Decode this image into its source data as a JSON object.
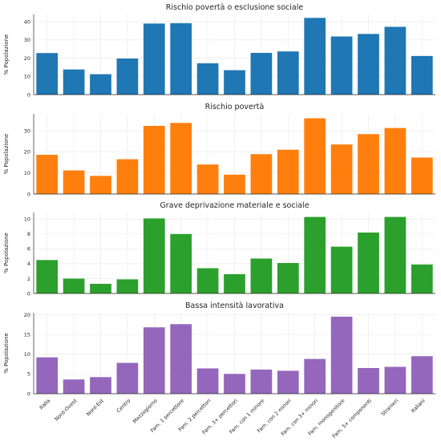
{
  "chart_data": {
    "type": "bar",
    "layout": "4 stacked subplots sharing the x axis",
    "categories": [
      "Italia",
      "Nord-Ovest",
      "Nord-Est",
      "Centro",
      "Mezzogiorno",
      "Fam. 1 percettore",
      "Fam. 2 percettori",
      "Fam. 3+ percettori",
      "Fam. con 1 minore",
      "Fam. con 2 minori",
      "Fam. con 3+ minori",
      "Fam. monogenitore",
      "Fam. 5+ componenti",
      "Stranieri",
      "Italiani"
    ],
    "grid": true,
    "panels": [
      {
        "title": "Rischio povertà o esclusione sociale",
        "ylabel": "% Popolazione",
        "color": "#1f77b4",
        "ylim": [
          0,
          44
        ],
        "yticks": [
          0,
          10,
          20,
          30,
          40
        ],
        "values": [
          22.8,
          13.8,
          11.2,
          19.8,
          39.0,
          39.2,
          17.2,
          13.4,
          22.9,
          23.7,
          42.1,
          31.9,
          33.3,
          37.2,
          21.2
        ]
      },
      {
        "title": "Rischio povertà",
        "ylabel": "% Popolazione",
        "color": "#ff7f0e",
        "ylim": [
          0,
          38
        ],
        "yticks": [
          0,
          10,
          20,
          30
        ],
        "values": [
          18.6,
          11.2,
          8.6,
          16.5,
          32.3,
          33.7,
          14.0,
          9.2,
          18.9,
          21.0,
          35.9,
          23.5,
          28.4,
          31.3,
          17.3
        ]
      },
      {
        "title": "Grave deprivazione materiale e sociale",
        "ylabel": "% Popolazione",
        "color": "#2ca02c",
        "ylim": [
          0,
          10.9
        ],
        "yticks": [
          0,
          2,
          4,
          6,
          8,
          10
        ],
        "values": [
          4.5,
          2.0,
          1.3,
          1.9,
          10.1,
          8.0,
          3.4,
          2.6,
          4.7,
          4.1,
          10.3,
          6.3,
          8.2,
          10.3,
          3.9
        ]
      },
      {
        "title": "Bassa intensità lavorativa",
        "ylabel": "% Popolazione",
        "color": "#9467bd",
        "ylim": [
          0,
          20.5
        ],
        "yticks": [
          0,
          5,
          10,
          15,
          20
        ],
        "values": [
          9.2,
          3.6,
          4.2,
          7.8,
          16.8,
          17.6,
          6.4,
          5.0,
          6.1,
          5.8,
          8.8,
          19.5,
          6.5,
          6.8,
          9.5
        ]
      }
    ]
  }
}
